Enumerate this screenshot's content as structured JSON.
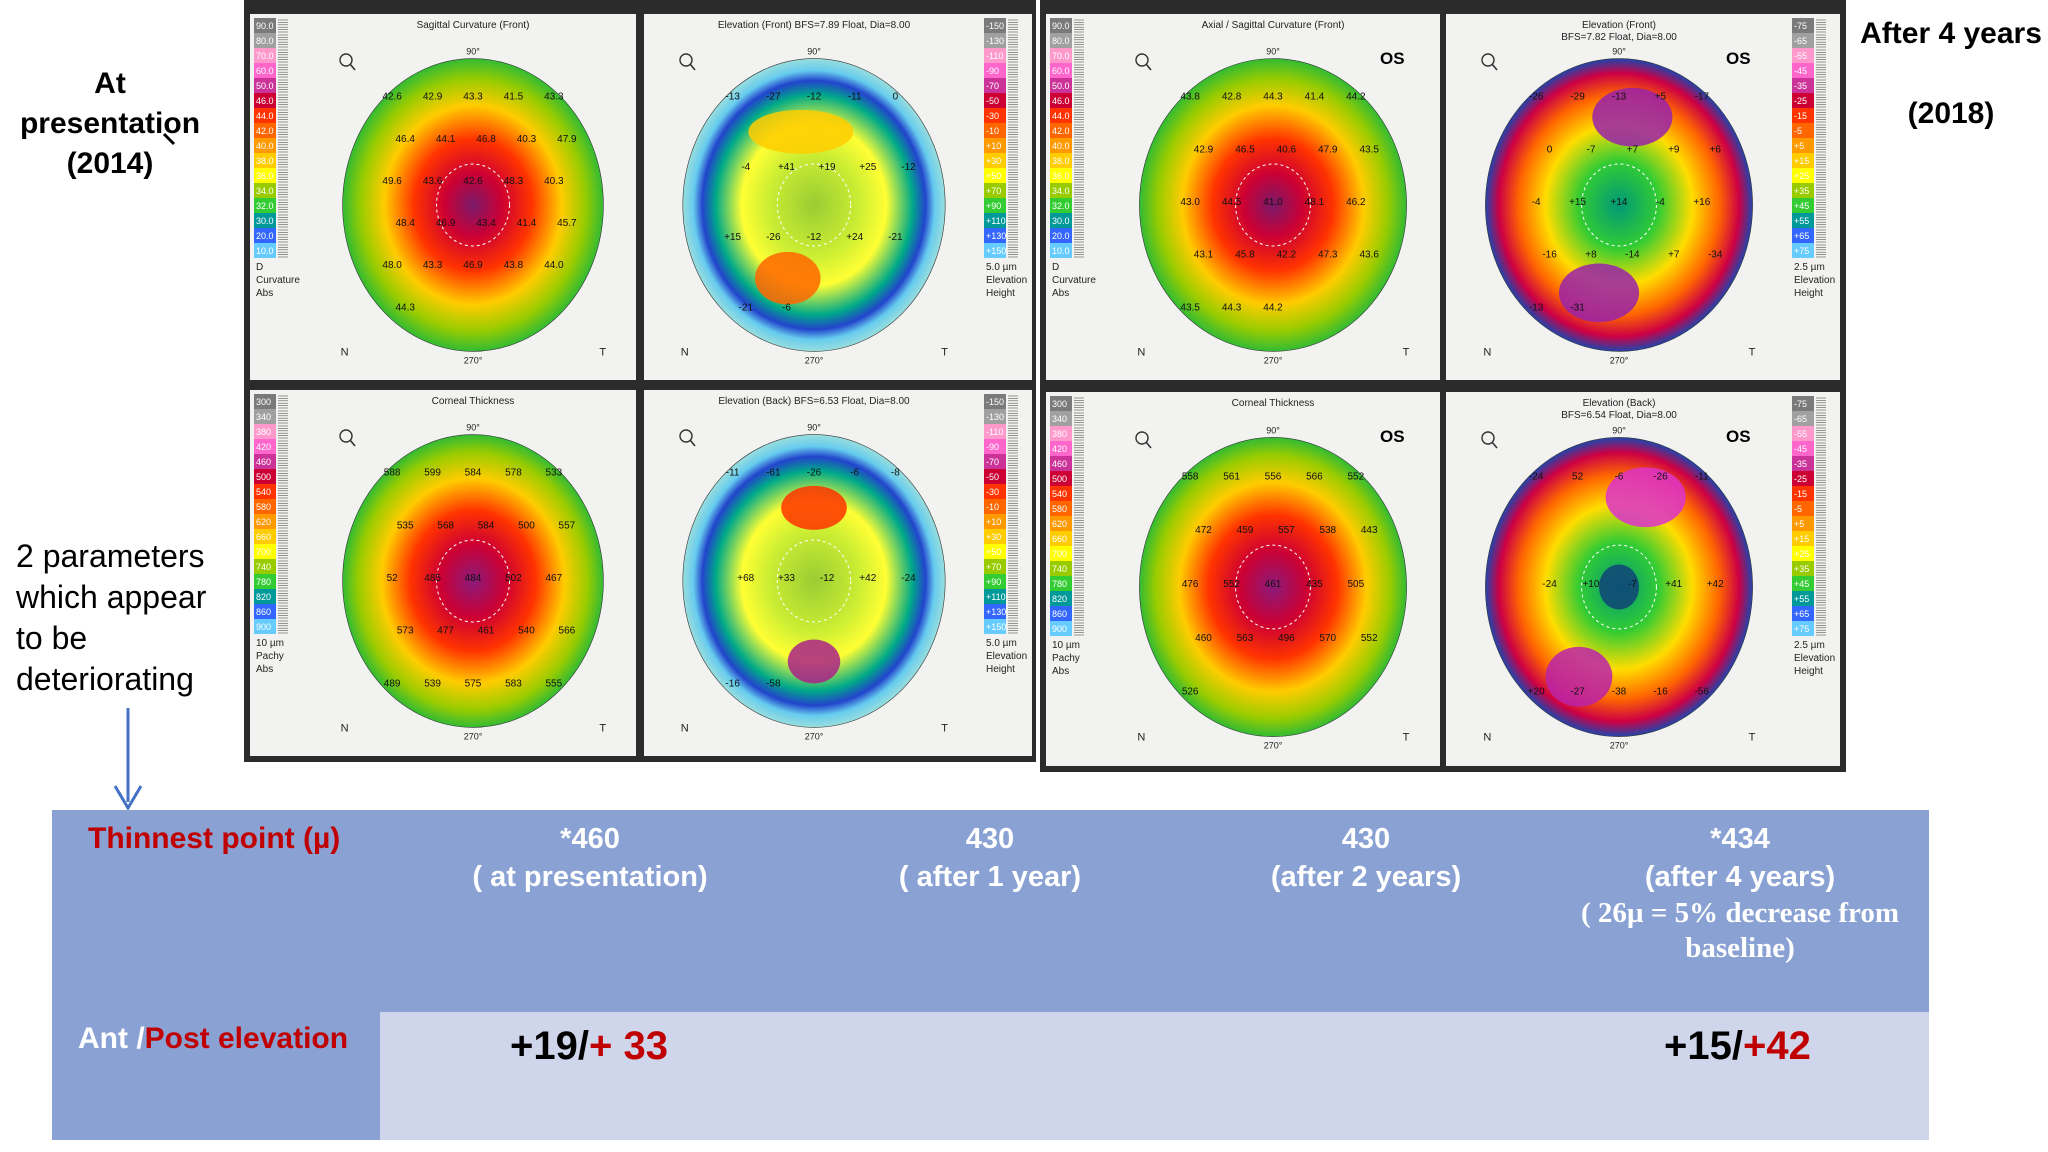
{
  "left_labels": {
    "presentation_line1": "At",
    "presentation_line2": "presentation",
    "presentation_line3": "(2014)",
    "params_line1": "2 parameters",
    "params_line2": "which appear",
    "params_line3": "to be",
    "params_line4": "deteriorating"
  },
  "right_labels": {
    "after": "After 4 years",
    "year": "(2018)"
  },
  "maps": {
    "scale_curvature": [
      "90.0",
      "80.0",
      "70.0",
      "60.0",
      "50.0",
      "46.0",
      "44.0",
      "42.0",
      "40.0",
      "38.0",
      "36.0",
      "34.0",
      "32.0",
      "30.0",
      "20.0",
      "10.0"
    ],
    "scale_elevation": [
      "-150",
      "-130",
      "-110",
      "-90",
      "-70",
      "-50",
      "-30",
      "-10",
      "+10",
      "+30",
      "+50",
      "+70",
      "+90",
      "+110",
      "+130",
      "+150"
    ],
    "scale_elevation_2018": [
      "-75",
      "-65",
      "-55",
      "-45",
      "-35",
      "-25",
      "-15",
      "-5",
      "+5",
      "+15",
      "+25",
      "+35",
      "+45",
      "+55",
      "+65",
      "+75"
    ],
    "scale_pachy": [
      "300",
      "340",
      "380",
      "420",
      "460",
      "500",
      "540",
      "580",
      "620",
      "660",
      "700",
      "740",
      "780",
      "820",
      "860",
      "900"
    ],
    "tl": {
      "title": "Sagittal Curvature (Front)",
      "bottom1": "D",
      "bottom2": "Curvature",
      "bottom3": "Abs",
      "values": [
        "42.6",
        "42.9",
        "43.3",
        "41.5",
        "43.3",
        "46.4",
        "44.1",
        "46.8",
        "40.3",
        "47.9",
        "49.6",
        "43.6",
        "42.6",
        "48.3",
        "40.3",
        "48.4",
        "46.9",
        "43.4",
        "41.4",
        "45.7",
        "48.0",
        "43.3",
        "46.9",
        "43.8",
        "44.0",
        "44.3"
      ]
    },
    "tr": {
      "title": "Elevation (Front)  BFS=7.89 Float, Dia=8.00",
      "bottom1": "5.0 µm",
      "bottom2": "Elevation",
      "bottom3": "Height",
      "values": [
        "-13",
        "-27",
        "-12",
        "-11",
        "0",
        "-4",
        "+41",
        "+19",
        "+25",
        "-12",
        "+15",
        "-26",
        "-12",
        "+24",
        "-21",
        "-21",
        "-6"
      ]
    },
    "bl": {
      "title": "Corneal Thickness",
      "bottom1": "10 µm",
      "bottom2": "Pachy",
      "bottom3": "Abs",
      "values": [
        "588",
        "599",
        "584",
        "578",
        "533",
        "535",
        "568",
        "584",
        "500",
        "557",
        "52",
        "485",
        "484",
        "502",
        "467",
        "573",
        "477",
        "461",
        "540",
        "566",
        "489",
        "539",
        "575",
        "583",
        "555"
      ]
    },
    "br": {
      "title": "Elevation (Back)  BFS=6.53 Float, Dia=8.00",
      "bottom1": "5.0 µm",
      "bottom2": "Elevation",
      "bottom3": "Height",
      "values": [
        "-11",
        "-61",
        "-26",
        "-6",
        "-8",
        "+68",
        "+33",
        "-12",
        "+42",
        "-24",
        "-16",
        "-58"
      ]
    },
    "tl2": {
      "title": "Axial / Sagittal Curvature (Front)",
      "eye": "OS",
      "bottom1": "D",
      "bottom2": "Curvature",
      "bottom3": "Abs",
      "values": [
        "43.8",
        "42.8",
        "44.3",
        "41.4",
        "44.2",
        "42.9",
        "46.5",
        "40.6",
        "47.9",
        "43.5",
        "43.0",
        "44.5",
        "41.0",
        "48.1",
        "46.2",
        "43.1",
        "45.8",
        "42.2",
        "47.3",
        "43.6",
        "43.5",
        "44.3",
        "44.2"
      ]
    },
    "tr2": {
      "title": "Elevation (Front)",
      "subtitle": "BFS=7.82 Float, Dia=8.00",
      "eye": "OS",
      "bottom1": "2.5 µm",
      "bottom2": "Elevation",
      "bottom3": "Height",
      "values": [
        "-26",
        "-29",
        "-13",
        "+5",
        "-17",
        "0",
        "-7",
        "+7",
        "+9",
        "+6",
        "-4",
        "+15",
        "+14",
        "-4",
        "+16",
        "-16",
        "+8",
        "-14",
        "+7",
        "-34",
        "-13",
        "-31"
      ]
    },
    "bl2": {
      "title": "Corneal Thickness",
      "eye": "OS",
      "bottom1": "10 µm",
      "bottom2": "Pachy",
      "bottom3": "Abs",
      "values": [
        "558",
        "561",
        "556",
        "566",
        "552",
        "472",
        "459",
        "557",
        "538",
        "443",
        "476",
        "552",
        "461",
        "435",
        "505",
        "460",
        "563",
        "496",
        "570",
        "552",
        "526"
      ]
    },
    "br2": {
      "title": "Elevation (Back)",
      "subtitle": "BFS=6.54 Float, Dia=8.00",
      "eye": "OS",
      "bottom1": "2.5 µm",
      "bottom2": "Elevation",
      "bottom3": "Height",
      "values": [
        "-24",
        "52",
        "-6",
        "-26",
        "-11",
        "-24",
        "+10",
        "-7",
        "+41",
        "+42",
        "+20",
        "-27",
        "-38",
        "-16",
        "-56"
      ]
    }
  },
  "table": {
    "thinnest_label": "Thinnest point (µ)",
    "col1_value": "*460",
    "col1_note": "( at presentation)",
    "col2_value": "430",
    "col2_note": "( after 1 year)",
    "col3_value": "430",
    "col3_note": "(after 2 years)",
    "col4_value": "*434",
    "col4_note": "(after 4 years)",
    "col4_extra1": "( 26µ = 5% decrease from",
    "col4_extra2": "baseline)",
    "elevation_label_a": "Ant /",
    "elevation_label_b": "Post elevation",
    "elev1_ant": "+19/",
    "elev1_post": "+ 33",
    "elev2_ant": "+15/",
    "elev2_post": "+42"
  },
  "colors": {
    "table_bg": "#8aa1d4",
    "row2_bg": "#cfd6ec",
    "dark_red": "#c00000",
    "arrow_blue": "#4472c4"
  }
}
